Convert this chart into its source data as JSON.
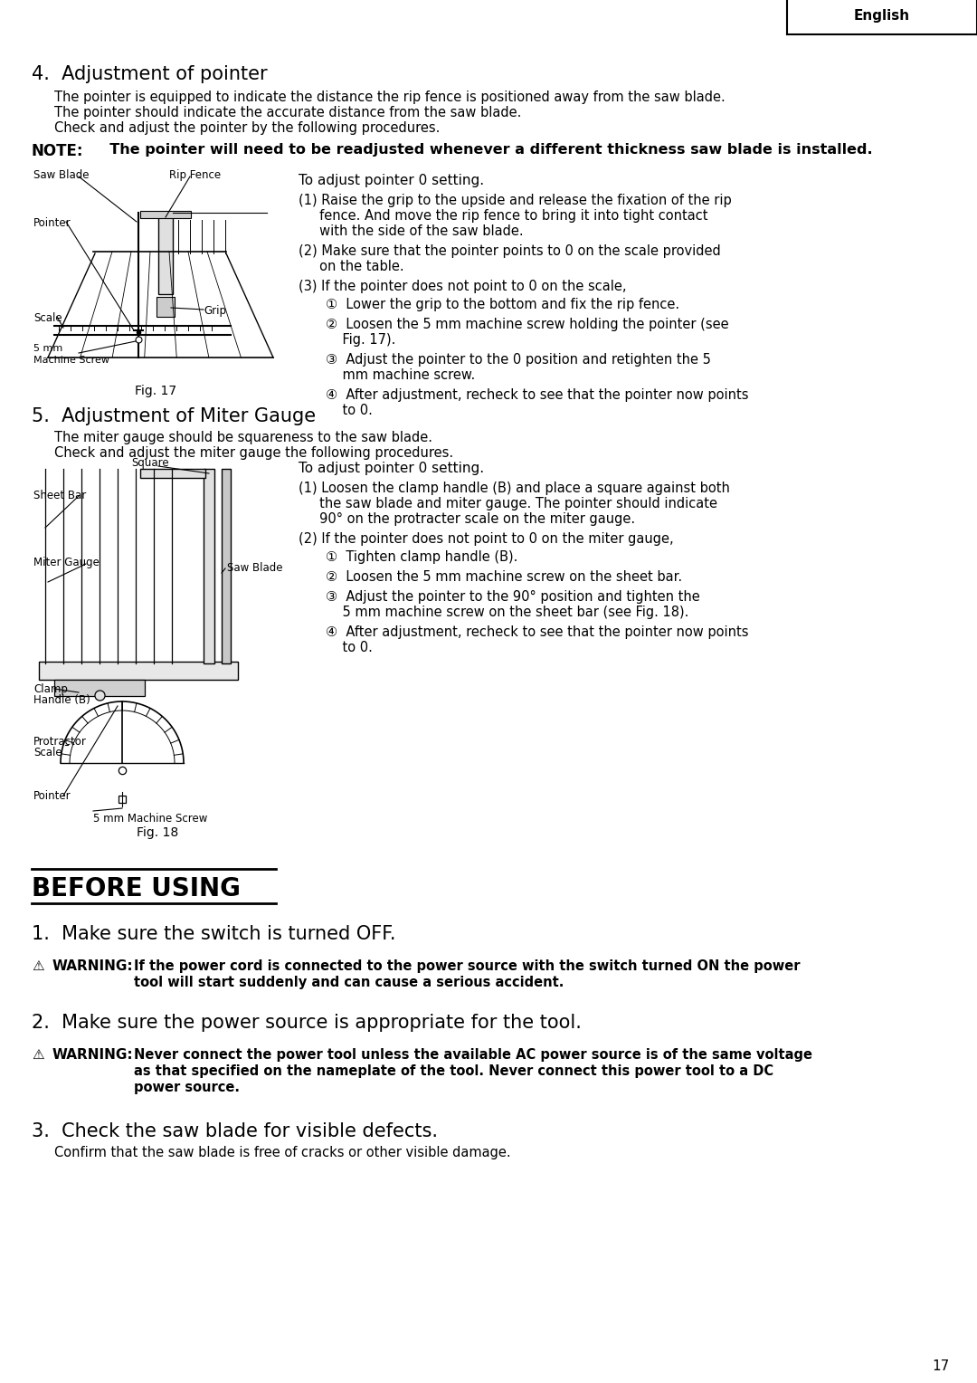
{
  "page_number": "17",
  "english_tab": "English",
  "bg_color": "#ffffff",
  "section4_title": "4.  Adjustment of pointer",
  "section4_intro_1": "The pointer is equipped to indicate the distance the rip fence is positioned away from the saw blade.",
  "section4_intro_2": "The pointer should indicate the accurate distance from the saw blade.",
  "section4_intro_3": "Check and adjust the pointer by the following procedures.",
  "note_label": "NOTE:",
  "note_text": "  The pointer will need to be readjusted whenever a different thickness saw blade is installed.",
  "fig17_caption": "Fig. 17",
  "adj_ptr_title": "To adjust pointer 0 setting.",
  "adj_ptr_1a": "(1) Raise the grip to the upside and release the fixation of the rip",
  "adj_ptr_1b": "     fence. And move the rip fence to bring it into tight contact",
  "adj_ptr_1c": "     with the side of the saw blade.",
  "adj_ptr_2a": "(2) Make sure that the pointer points to 0 on the scale provided",
  "adj_ptr_2b": "     on the table.",
  "adj_ptr_3": "(3) If the pointer does not point to 0 on the scale,",
  "adj_ptr_s1": "①  Lower the grip to the bottom and fix the rip fence.",
  "adj_ptr_s2a": "②  Loosen the 5 mm machine screw holding the pointer (see",
  "adj_ptr_s2b": "    Fig. 17).",
  "adj_ptr_s3a": "③  Adjust the pointer to the 0 position and retighten the 5",
  "adj_ptr_s3b": "    mm machine screw.",
  "adj_ptr_s4a": "④  After adjustment, recheck to see that the pointer now points",
  "adj_ptr_s4b": "    to 0.",
  "section5_title": "5.  Adjustment of Miter Gauge",
  "section5_intro_1": "The miter gauge should be squareness to the saw blade.",
  "section5_intro_2": "Check and adjust the miter gauge the following procedures.",
  "fig18_caption": "Fig. 18",
  "adj_mit_title": "To adjust pointer 0 setting.",
  "adj_mit_1a": "(1) Loosen the clamp handle (B) and place a square against both",
  "adj_mit_1b": "     the saw blade and miter gauge. The pointer should indicate",
  "adj_mit_1c": "     90° on the protracter scale on the miter gauge.",
  "adj_mit_2": "(2) If the pointer does not point to 0 on the miter gauge,",
  "adj_mit_s1": "①  Tighten clamp handle (B).",
  "adj_mit_s2": "②  Loosen the 5 mm machine screw on the sheet bar.",
  "adj_mit_s3a": "③  Adjust the pointer to the 90° position and tighten the",
  "adj_mit_s3b": "    5 mm machine screw on the sheet bar (see Fig. 18).",
  "adj_mit_s4a": "④  After adjustment, recheck to see that the pointer now points",
  "adj_mit_s4b": "    to 0.",
  "before_using": "BEFORE USING",
  "bu1_text": "1.  Make sure the switch is turned OFF.",
  "bu1_warn_a": "⚠ WARNING: If the power cord is connected to the power source with the switch turned ON the power",
  "bu1_warn_b": "                    tool will start suddenly and can cause a serious accident.",
  "bu2_text": "2.  Make sure the power source is appropriate for the tool.",
  "bu2_warn_a": "⚠ WARNING: Never connect the power tool unless the available AC power source is of the same voltage",
  "bu2_warn_b": "                    as that specified on the nameplate of the tool. Never connect this power tool to a DC",
  "bu2_warn_c": "                    power source.",
  "bu3_text": "3.  Check the saw blade for visible defects.",
  "bu3_sub": "     Confirm that the saw blade is free of cracks or other visible damage."
}
